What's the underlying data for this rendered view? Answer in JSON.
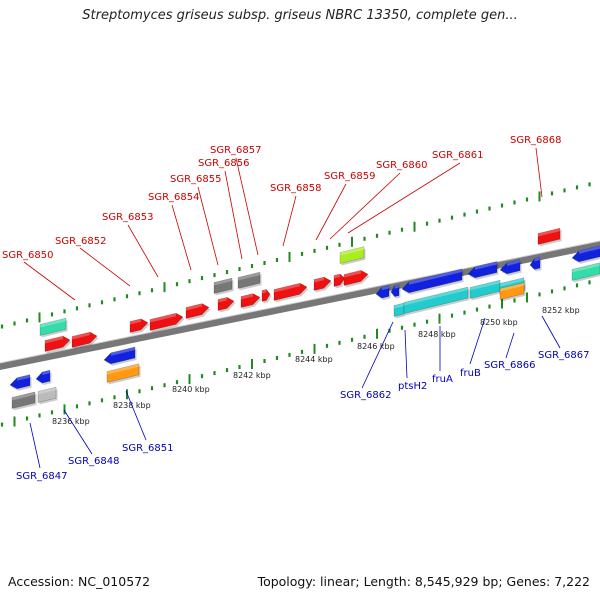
{
  "header": {
    "title": "Streptomyces griseus subsp. griseus NBRC 13350, complete gen..."
  },
  "footer": {
    "accession": "Accession: NC_010572",
    "summary": "Topology: linear; Length: 8,545,929 bp; Genes: 7,222"
  },
  "colors": {
    "forward_label": "#cc0000",
    "reverse_label": "#0000bb",
    "backbone": "#777777",
    "tick": "#228822",
    "red": "#ee1111",
    "blue": "#1122dd",
    "cyan": "#22cccc",
    "green": "#33ddaa",
    "gray": "#777777",
    "lightgray": "#bbbbbb",
    "orange": "#ff9911",
    "lime": "#aaee22"
  },
  "scale": {
    "tick_labels": [
      "8236 kbp",
      "8238 kbp",
      "8240 kbp",
      "8242 kbp",
      "8244 kbp",
      "8246 kbp",
      "8248 kbp",
      "8250 kbp",
      "8252 kbp"
    ]
  },
  "gene_labels": {
    "forward": [
      "SGR_6850",
      "SGR_6852",
      "SGR_6853",
      "SGR_6854",
      "SGR_6855",
      "SGR_6856",
      "SGR_6857",
      "SGR_6858",
      "SGR_6859",
      "SGR_6860",
      "SGR_6861",
      "SGR_6868"
    ],
    "reverse": [
      "SGR_6847",
      "SGR_6848",
      "SGR_6851",
      "SGR_6862",
      "ptsH2",
      "fruA",
      "fruB",
      "SGR_6866",
      "SGR_6867"
    ]
  }
}
